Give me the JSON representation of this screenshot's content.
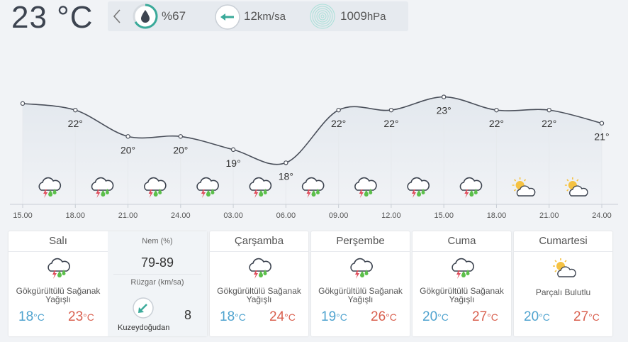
{
  "current": {
    "temperature": "23 °C",
    "humidity": "%67",
    "wind_value": "12",
    "wind_unit": "km/sa",
    "pressure_value": "1009",
    "pressure_unit": "hPa"
  },
  "chart_data": {
    "type": "line",
    "x": [
      "15.00",
      "18.00",
      "21.00",
      "24.00",
      "03.00",
      "06.00",
      "09.00",
      "12.00",
      "15.00",
      "18.00",
      "21.00",
      "24.00"
    ],
    "values": [
      22.5,
      22,
      20,
      20,
      19,
      18,
      22,
      22,
      23,
      22,
      22,
      21
    ],
    "labels": [
      "",
      "22°",
      "20°",
      "20°",
      "19°",
      "18°",
      "22°",
      "22°",
      "23°",
      "22°",
      "22°",
      "21°"
    ],
    "conditions": [
      "storm",
      "storm",
      "storm",
      "storm",
      "storm",
      "storm",
      "storm",
      "storm",
      "storm",
      "partly-cloudy",
      "partly-cloudy"
    ],
    "ylim": [
      17,
      24
    ]
  },
  "days": [
    {
      "name": "Salı",
      "condition": "Gökgürültülü Sağanak Yağışlı",
      "icon": "storm",
      "min": "18",
      "max": "23",
      "unit": "°C",
      "humidity_label": "Nem (%)",
      "humidity": "79-89",
      "wind_label": "Rüzgar (km/sa)",
      "wind_speed": "8",
      "wind_direction": "Kuzeydoğudan"
    },
    {
      "name": "Çarşamba",
      "condition": "Gökgürültülü Sağanak Yağışlı",
      "icon": "storm",
      "min": "18",
      "max": "24",
      "unit": "°C"
    },
    {
      "name": "Perşembe",
      "condition": "Gökgürültülü Sağanak Yağışlı",
      "icon": "storm",
      "min": "19",
      "max": "26",
      "unit": "°C"
    },
    {
      "name": "Cuma",
      "condition": "Gökgürültülü Sağanak Yağışlı",
      "icon": "storm",
      "min": "20",
      "max": "27",
      "unit": "°C"
    },
    {
      "name": "Cumartesi",
      "condition": "Parçalı Bulutlu",
      "icon": "partly-cloudy",
      "min": "20",
      "max": "27",
      "unit": "°C"
    }
  ],
  "colors": {
    "line": "#4a4f5a",
    "min": "#4fa3cf",
    "max": "#d9604f",
    "rain": "#5bbf4a",
    "bolt": "#e04b5a",
    "sun": "#f5c242",
    "accent": "#3aaa9a"
  }
}
